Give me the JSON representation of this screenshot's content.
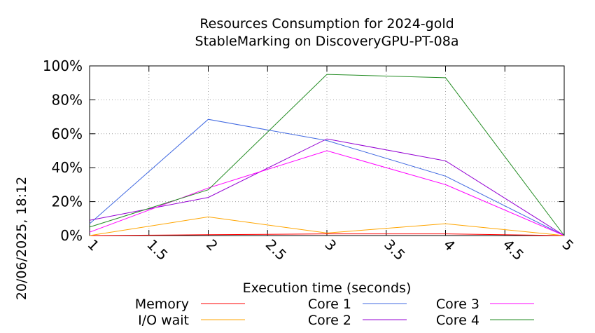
{
  "chart_data": {
    "type": "line",
    "title_lines": [
      "Resources Consumption for 2024-gold",
      "StableMarking on DiscoveryGPU-PT-08a"
    ],
    "side_label": "20/06/2025, 18:12",
    "xlabel": "Execution time (seconds)",
    "ylabel": "",
    "xlim": [
      1,
      5
    ],
    "ylim": [
      0,
      100
    ],
    "x_ticks": [
      "1",
      "1.5",
      "2",
      "2.5",
      "3",
      "3.5",
      "4",
      "4.5",
      "5"
    ],
    "y_ticks": [
      "0%",
      "20%",
      "40%",
      "60%",
      "80%",
      "100%"
    ],
    "grid": true,
    "legend_position": "bottom",
    "x": [
      1,
      2,
      3,
      4,
      5
    ],
    "series": [
      {
        "name": "Memory",
        "color": "#ff0000",
        "values": [
          0,
          0.5,
          1,
          1,
          0
        ]
      },
      {
        "name": "I/O wait",
        "color": "#ffa500",
        "values": [
          0,
          11,
          1.5,
          7,
          0
        ]
      },
      {
        "name": "Core 1",
        "color": "#4169e1",
        "values": [
          7,
          68.5,
          56,
          35,
          0
        ]
      },
      {
        "name": "Core 2",
        "color": "#9400d3",
        "values": [
          9,
          22.5,
          57,
          44,
          0
        ]
      },
      {
        "name": "Core 3",
        "color": "#ff00ff",
        "values": [
          2,
          28,
          50,
          30,
          0
        ]
      },
      {
        "name": "Core 4",
        "color": "#228b22",
        "values": [
          5,
          27,
          95,
          93,
          0
        ]
      }
    ]
  }
}
